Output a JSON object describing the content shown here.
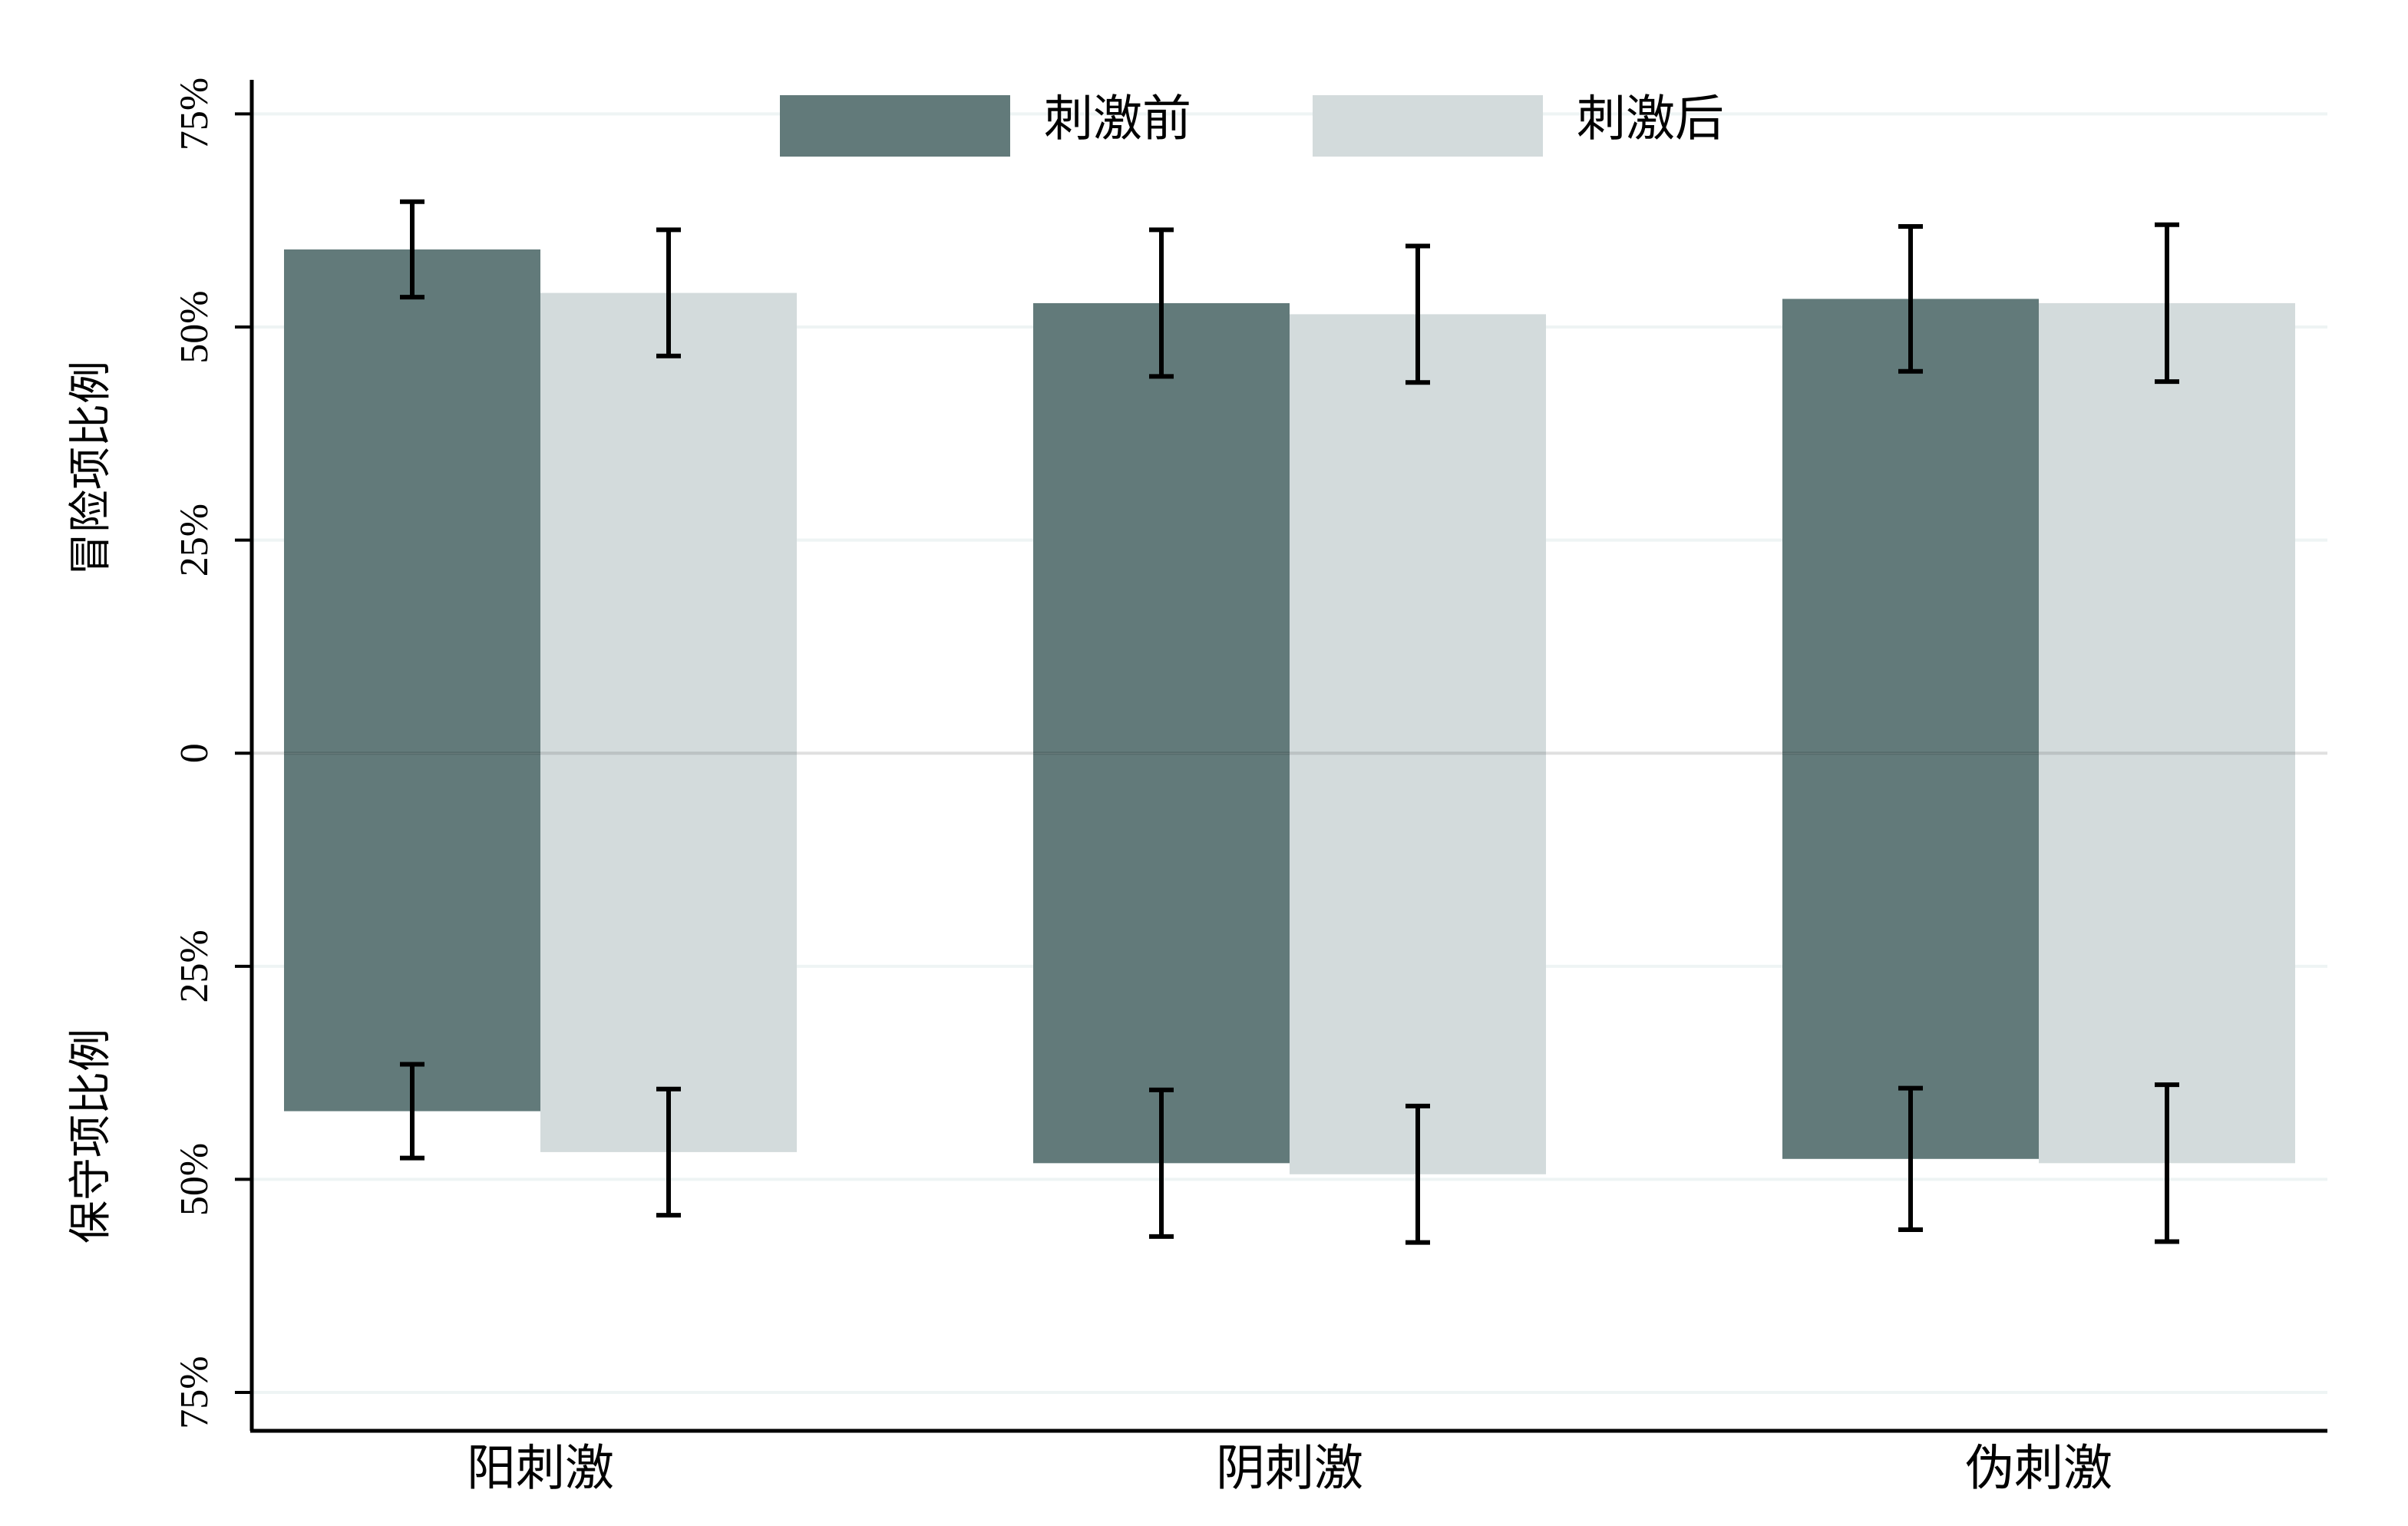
{
  "chart_data": {
    "type": "diverging-bar",
    "ylabel_top": "冒险项比例",
    "ylabel_bottom": "保守项比例",
    "categories": [
      "阳刺激",
      "阴刺激",
      "伪刺激"
    ],
    "series": [
      {
        "name": "刺激前",
        "color": "#627a7a",
        "values": [
          59.1,
          52.8,
          53.3
        ],
        "errors": [
          5.6,
          8.6,
          8.5
        ],
        "values_down": [
          -42.0,
          -48.1,
          -47.6
        ],
        "errors_down": [
          5.5,
          8.6,
          8.3
        ]
      },
      {
        "name": "刺激后",
        "color": "#d3dbdc",
        "values": [
          54.0,
          51.5,
          52.8
        ],
        "errors": [
          7.4,
          8.0,
          9.2
        ],
        "values_down": [
          -46.8,
          -49.4,
          -48.1
        ],
        "errors_down": [
          7.4,
          8.0,
          9.2
        ]
      }
    ],
    "ylim": [
      -79.5,
      79
    ],
    "yticks": [
      {
        "value": -75,
        "label": "75%"
      },
      {
        "value": -50,
        "label": "50%"
      },
      {
        "value": -25,
        "label": "25%"
      },
      0,
      {
        "value": 25,
        "label": "25%"
      },
      {
        "value": 50,
        "label": "50%"
      },
      {
        "value": 75,
        "label": "75%"
      }
    ],
    "grid": true,
    "legend": "top"
  }
}
